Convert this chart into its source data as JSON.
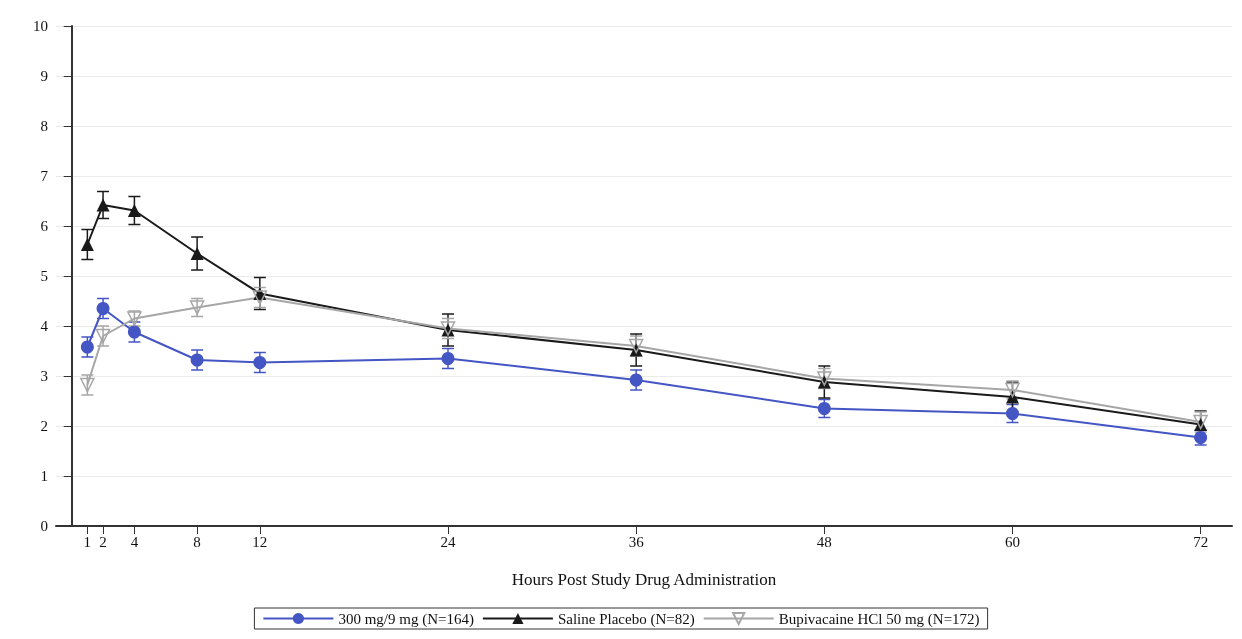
{
  "chart_data": {
    "type": "line",
    "xlabel": "Hours Post Study Drug Administration",
    "x": [
      1,
      2,
      4,
      8,
      12,
      24,
      36,
      48,
      60,
      72
    ],
    "xlim": [
      -1,
      74
    ],
    "xticks": [
      1,
      2,
      4,
      8,
      12,
      24,
      36,
      48,
      60,
      72
    ],
    "ylim": [
      0,
      10
    ],
    "yticks": [
      0,
      1,
      2,
      3,
      4,
      5,
      6,
      7,
      8,
      9,
      10
    ],
    "grid": "y",
    "legend": "bottom",
    "line_style": "solid",
    "series": [
      {
        "name": "300 mg/9 mg (N=164)",
        "color": "#4455c4",
        "marker": "circle",
        "values": [
          3.58,
          4.35,
          3.88,
          3.32,
          3.27,
          3.35,
          2.92,
          2.35,
          2.25,
          1.77
        ],
        "errors": [
          0.2,
          0.2,
          0.2,
          0.2,
          0.2,
          0.2,
          0.2,
          0.18,
          0.18,
          0.15
        ]
      },
      {
        "name": "Saline Placebo (N=82)",
        "color": "#1a1a1a",
        "marker": "triangle",
        "values": [
          5.63,
          6.42,
          6.31,
          5.45,
          4.65,
          3.92,
          3.52,
          2.88,
          2.58,
          2.03
        ],
        "errors": [
          0.3,
          0.27,
          0.28,
          0.33,
          0.32,
          0.32,
          0.32,
          0.32,
          0.3,
          0.27
        ]
      },
      {
        "name": "Bupivacaine HCl 50 mg (N=172)",
        "color": "#a6a6a6",
        "marker": "triangle-down",
        "values": [
          2.82,
          3.8,
          4.15,
          4.37,
          4.57,
          3.95,
          3.6,
          2.95,
          2.72,
          2.08
        ],
        "errors": [
          0.2,
          0.2,
          0.15,
          0.18,
          0.2,
          0.2,
          0.2,
          0.2,
          0.18,
          0.2
        ]
      }
    ]
  }
}
